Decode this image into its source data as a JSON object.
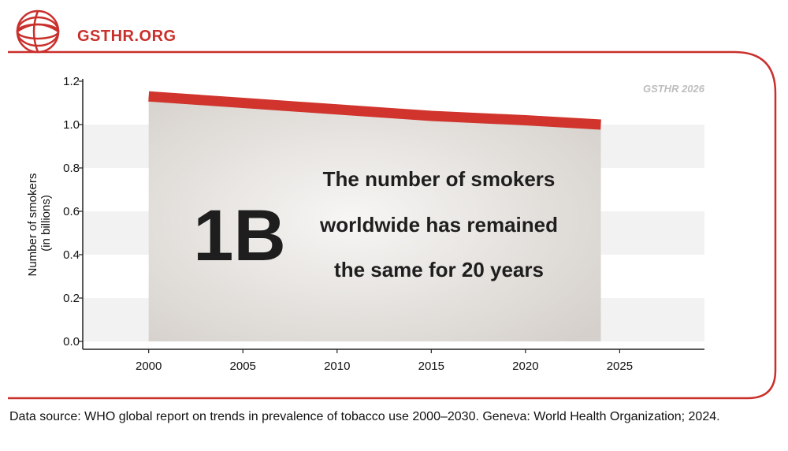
{
  "brand": {
    "name": "GSTHR.ORG"
  },
  "watermark": "GSTHR 2026",
  "headline": "1B",
  "callout_lines": [
    "The number of smokers",
    "worldwide has remained",
    "the same for 20 years"
  ],
  "source": "Data source: WHO global report on trends in prevalence of tobacco use 2000–2030. Geneva: World Health Organization; 2024.",
  "colors": {
    "accent": "#d0342c",
    "band": "#f2f2f2",
    "area_light": "#f7f6f4",
    "area_dark": "#d5d0cb"
  },
  "chart_data": {
    "type": "area",
    "x": [
      2000,
      2005,
      2010,
      2015,
      2020,
      2024
    ],
    "y": [
      1.13,
      1.1,
      1.07,
      1.04,
      1.02,
      1.0
    ],
    "xticks": [
      2000,
      2005,
      2010,
      2015,
      2020,
      2025
    ],
    "yticks": [
      "0.0",
      "0.2",
      "0.4",
      "0.6",
      "0.8",
      "1.0",
      "1.2"
    ],
    "ylabel": [
      "Number of smokers",
      "(in billions)"
    ],
    "xlim": [
      1996.5,
      2029.5
    ],
    "ylim": [
      0,
      1.2
    ],
    "grid": "alternating horizontal bands"
  }
}
